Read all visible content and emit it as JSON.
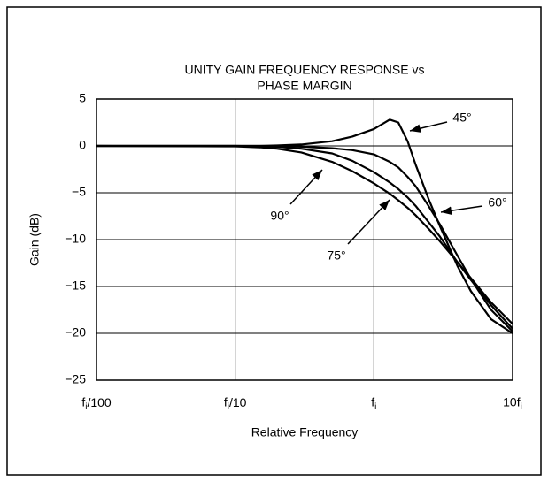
{
  "chart_data": {
    "type": "line",
    "title": [
      "UNITY GAIN FREQUENCY RESPONSE vs",
      "PHASE MARGIN"
    ],
    "xlabel": "Relative Frequency",
    "ylabel": "Gain (dB)",
    "xscale": "log",
    "grid": true,
    "x": [
      0.01,
      0.1,
      0.15,
      0.2,
      0.3,
      0.5,
      0.7,
      1,
      1.3,
      1.5,
      1.75,
      2,
      2.5,
      3,
      4,
      5,
      7,
      10
    ],
    "series": [
      {
        "name": "45°",
        "color": "#000000",
        "values": [
          0,
          0,
          0,
          0.05,
          0.15,
          0.5,
          1,
          1.8,
          2.8,
          2.5,
          0.5,
          -2,
          -5.8,
          -8.6,
          -12.8,
          -15.5,
          -18.5,
          -20
        ]
      },
      {
        "name": "60°",
        "color": "#000000",
        "values": [
          0,
          0,
          0,
          -0.02,
          -0.08,
          -0.25,
          -0.45,
          -0.9,
          -1.7,
          -2.3,
          -3.3,
          -4.3,
          -6.5,
          -8.4,
          -11.7,
          -14.2,
          -17.5,
          -19.8
        ]
      },
      {
        "name": "75°",
        "color": "#000000",
        "values": [
          0,
          0,
          -0.05,
          -0.1,
          -0.3,
          -0.8,
          -1.6,
          -2.8,
          -3.9,
          -4.6,
          -5.5,
          -6.4,
          -8.2,
          -9.7,
          -12.4,
          -14.3,
          -17,
          -19.5
        ]
      },
      {
        "name": "90°",
        "color": "#000000",
        "values": [
          0,
          -0.05,
          -0.15,
          -0.3,
          -0.7,
          -1.7,
          -2.7,
          -4,
          -5.1,
          -5.8,
          -6.6,
          -7.4,
          -8.9,
          -10.2,
          -12.4,
          -14.1,
          -16.7,
          -19
        ]
      }
    ],
    "xlim": [
      0.01,
      10
    ],
    "xticks": [
      {
        "value": 0.01,
        "label": "fi/100"
      },
      {
        "value": 0.1,
        "label": "fi/10"
      },
      {
        "value": 1,
        "label": "fi"
      },
      {
        "value": 10,
        "label": "10fi"
      }
    ],
    "ylim": [
      -25,
      5
    ],
    "yticks": [
      5,
      0,
      {
        "value": -5,
        "label": "−5"
      },
      {
        "value": -10,
        "label": "−10"
      },
      {
        "value": -15,
        "label": "−15"
      },
      {
        "value": -20,
        "label": "−20"
      },
      {
        "value": -25,
        "label": "−25"
      }
    ]
  }
}
